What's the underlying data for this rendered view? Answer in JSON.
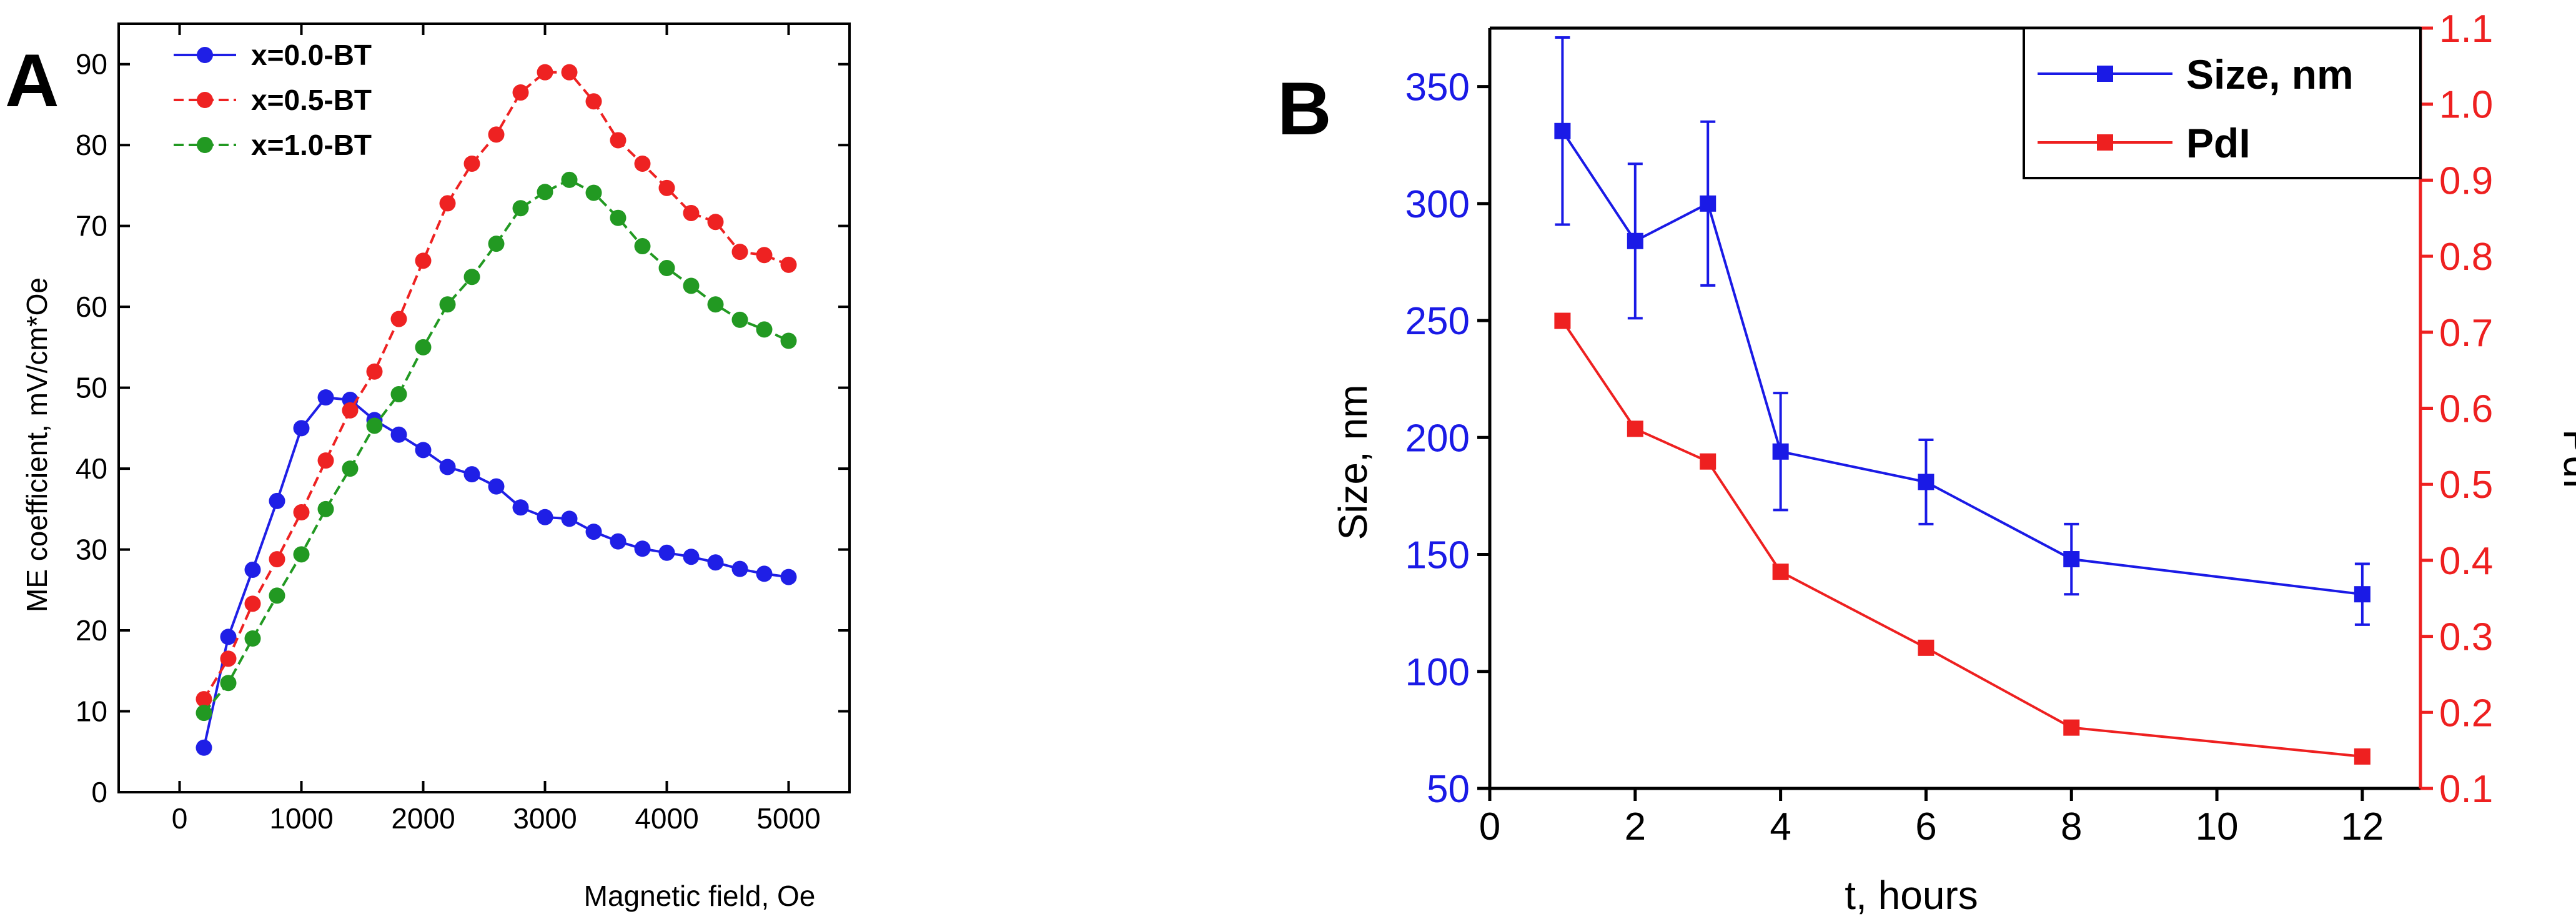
{
  "panel_a_letter": "A",
  "panel_b_letter": "B",
  "chart_data": [
    {
      "type": "line",
      "title": "",
      "xlabel": "Magnetic field, Oe",
      "ylabel": "ME coefficient, mV/cm*Oe",
      "xlim": [
        -500,
        5500
      ],
      "ylim": [
        0,
        95
      ],
      "xticks": [
        0,
        1000,
        2000,
        3000,
        4000,
        5000
      ],
      "yticks": [
        0,
        10,
        20,
        30,
        40,
        50,
        60,
        70,
        80,
        90
      ],
      "legend_position": "top-left",
      "series": [
        {
          "name": "x=0.0-BT",
          "color": "#1f1fe6",
          "line_style": "solid",
          "x": [
            200,
            400,
            600,
            800,
            1000,
            1200,
            1400,
            1600,
            1800,
            2000,
            2200,
            2400,
            2600,
            2800,
            3000,
            3200,
            3400,
            3600,
            3800,
            4000,
            4200,
            4400,
            4600,
            4800,
            5000
          ],
          "y": [
            5.5,
            19.2,
            27.5,
            36,
            45,
            48.8,
            48.5,
            46,
            44.2,
            42.3,
            40.2,
            39.3,
            37.8,
            35.2,
            34,
            33.8,
            32.2,
            31,
            30.1,
            29.6,
            29.1,
            28.4,
            27.6,
            27,
            26.6
          ]
        },
        {
          "name": "x=0.5-BT",
          "color": "#ee2222",
          "line_style": "dashed",
          "x": [
            200,
            400,
            600,
            800,
            1000,
            1200,
            1400,
            1600,
            1800,
            2000,
            2200,
            2400,
            2600,
            2800,
            3000,
            3200,
            3400,
            3600,
            3800,
            4000,
            4200,
            4400,
            4600,
            4800,
            5000
          ],
          "y": [
            11.5,
            16.5,
            23.3,
            28.8,
            34.6,
            41,
            47.2,
            52,
            58.5,
            65.7,
            72.8,
            77.7,
            81.3,
            86.5,
            89,
            89,
            85.4,
            80.6,
            77.7,
            74.7,
            71.6,
            70.5,
            66.8,
            66.4,
            65.2
          ]
        },
        {
          "name": "x=1.0-BT",
          "color": "#229922",
          "line_style": "dashed",
          "x": [
            200,
            400,
            600,
            800,
            1000,
            1200,
            1400,
            1600,
            1800,
            2000,
            2200,
            2400,
            2600,
            2800,
            3000,
            3200,
            3400,
            3600,
            3800,
            4000,
            4200,
            4400,
            4600,
            4800,
            5000
          ],
          "y": [
            9.8,
            13.5,
            19,
            24.3,
            29.4,
            35,
            40,
            45.3,
            49.2,
            55,
            60.3,
            63.7,
            67.8,
            72.2,
            74.2,
            75.7,
            74.1,
            71,
            67.5,
            64.8,
            62.6,
            60.3,
            58.4,
            57.2,
            55.8
          ]
        }
      ]
    },
    {
      "type": "line",
      "title": "",
      "xlabel": "t, hours",
      "ylabel": "Size, nm",
      "y2label": "PdI",
      "xlim": [
        0,
        12.8
      ],
      "ylim": [
        50,
        375
      ],
      "y2lim": [
        0.1,
        1.1
      ],
      "xticks": [
        0,
        2,
        4,
        6,
        8,
        10,
        12
      ],
      "yticks": [
        50,
        100,
        150,
        200,
        250,
        300,
        350
      ],
      "y2ticks": [
        0.1,
        0.2,
        0.3,
        0.4,
        0.5,
        0.6,
        0.7,
        0.8,
        0.9,
        1.0,
        1.1
      ],
      "y2tick_labels": [
        "0.1",
        "0.2",
        "0.3",
        "0.4",
        "0.5",
        "0.6",
        "0.7",
        "0.8",
        "0.9",
        "1.0",
        "1.1"
      ],
      "legend_position": "top-right",
      "series": [
        {
          "name": "Size, nm",
          "axis": "left",
          "color": "#1a1ae6",
          "x": [
            1,
            2,
            3,
            4,
            6,
            8,
            12
          ],
          "y": [
            331,
            284,
            300,
            194,
            181,
            148,
            133
          ],
          "error": [
            40,
            33,
            35,
            25,
            18,
            15,
            13
          ]
        },
        {
          "name": "PdI",
          "axis": "right",
          "color": "#ee2020",
          "x": [
            1,
            2,
            3,
            4,
            6,
            8,
            12
          ],
          "y": [
            0.715,
            0.573,
            0.53,
            0.385,
            0.285,
            0.18,
            0.142
          ]
        }
      ]
    }
  ]
}
